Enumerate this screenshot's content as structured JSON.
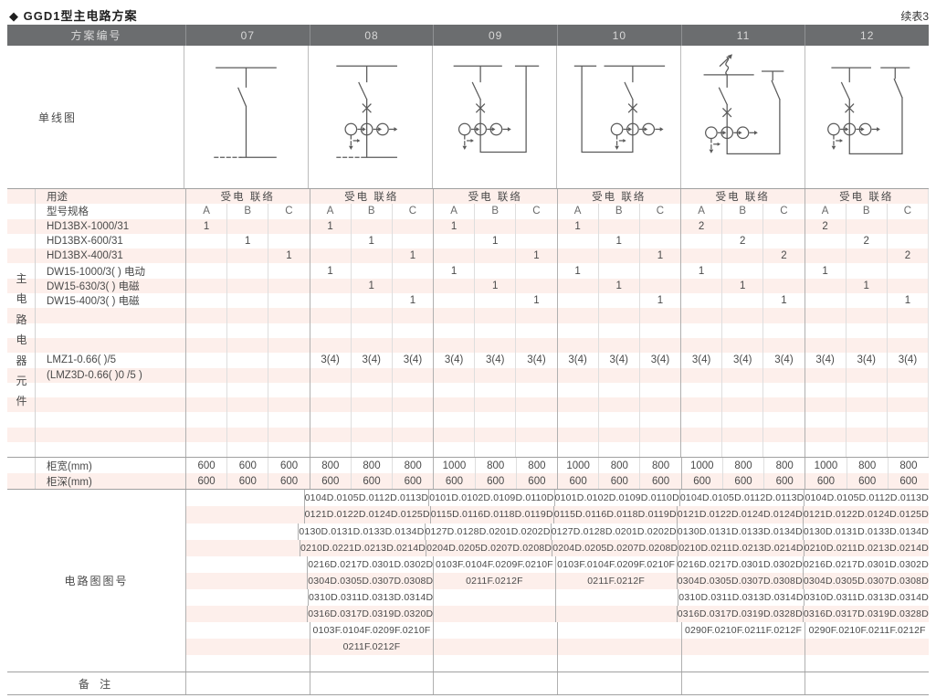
{
  "page": {
    "title": "◆ GGD1型主电路方案",
    "continuation": "续表3"
  },
  "table": {
    "header": {
      "label": "方案编号",
      "schemes": [
        "07",
        "08",
        "09",
        "10",
        "11",
        "12"
      ]
    },
    "diagram_label": "单线图",
    "side_label": "主\n电\n路\n电\n器\n元\n件",
    "specs": {
      "subcols": [
        "A",
        "B",
        "C"
      ],
      "rows": [
        {
          "label": "用途",
          "type": "span",
          "value": "受电 联络"
        },
        {
          "label": "型号规格",
          "type": "head"
        },
        {
          "label": "HD13BX-1000/31",
          "type": "abc",
          "values": [
            [
              "1",
              "",
              ""
            ],
            [
              "1",
              "",
              ""
            ],
            [
              "1",
              "",
              ""
            ],
            [
              "1",
              "",
              ""
            ],
            [
              "2",
              "",
              ""
            ],
            [
              "2",
              "",
              ""
            ]
          ]
        },
        {
          "label": "HD13BX-600/31",
          "type": "abc",
          "values": [
            [
              "",
              "1",
              ""
            ],
            [
              "",
              "1",
              ""
            ],
            [
              "",
              "1",
              ""
            ],
            [
              "",
              "1",
              ""
            ],
            [
              "",
              "2",
              ""
            ],
            [
              "",
              "2",
              ""
            ]
          ]
        },
        {
          "label": "HD13BX-400/31",
          "type": "abc",
          "values": [
            [
              "",
              "",
              "1"
            ],
            [
              "",
              "",
              "1"
            ],
            [
              "",
              "",
              "1"
            ],
            [
              "",
              "",
              "1"
            ],
            [
              "",
              "",
              "2"
            ],
            [
              "",
              "",
              "2"
            ]
          ]
        },
        {
          "label": "DW15-1000/3( )  电动",
          "type": "abc",
          "values": [
            [
              "",
              "",
              ""
            ],
            [
              "1",
              "",
              ""
            ],
            [
              "1",
              "",
              ""
            ],
            [
              "1",
              "",
              ""
            ],
            [
              "1",
              "",
              ""
            ],
            [
              "1",
              "",
              ""
            ]
          ]
        },
        {
          "label": "DW15-630/3( )  电磁",
          "type": "abc",
          "values": [
            [
              "",
              "",
              ""
            ],
            [
              "",
              "1",
              ""
            ],
            [
              "",
              "1",
              ""
            ],
            [
              "",
              "1",
              ""
            ],
            [
              "",
              "1",
              ""
            ],
            [
              "",
              "1",
              ""
            ]
          ]
        },
        {
          "label": "DW15-400/3( )  电磁",
          "type": "abc",
          "values": [
            [
              "",
              "",
              ""
            ],
            [
              "",
              "",
              "1"
            ],
            [
              "",
              "",
              "1"
            ],
            [
              "",
              "",
              "1"
            ],
            [
              "",
              "",
              "1"
            ],
            [
              "",
              "",
              "1"
            ]
          ]
        },
        {
          "label": "",
          "type": "empty"
        },
        {
          "label": "",
          "type": "empty"
        },
        {
          "label": "",
          "type": "empty"
        },
        {
          "label": "LMZ1-0.66(  )/5",
          "type": "abc",
          "values": [
            [
              "",
              "",
              ""
            ],
            [
              "3(4)",
              "3(4)",
              "3(4)"
            ],
            [
              "3(4)",
              "3(4)",
              "3(4)"
            ],
            [
              "3(4)",
              "3(4)",
              "3(4)"
            ],
            [
              "3(4)",
              "3(4)",
              "3(4)"
            ],
            [
              "3(4)",
              "3(4)",
              "3(4)"
            ]
          ]
        },
        {
          "label": "(LMZ3D-0.66(  )0 /5 )",
          "type": "empty"
        },
        {
          "label": "",
          "type": "empty"
        },
        {
          "label": "",
          "type": "empty"
        },
        {
          "label": "",
          "type": "empty"
        },
        {
          "label": "",
          "type": "empty"
        },
        {
          "label": "",
          "type": "empty"
        }
      ]
    },
    "dimensions": {
      "rows": [
        {
          "label": "柜宽(mm)",
          "type": "abc",
          "values": [
            [
              "600",
              "600",
              "600"
            ],
            [
              "800",
              "800",
              "800"
            ],
            [
              "1000",
              "800",
              "800"
            ],
            [
              "1000",
              "800",
              "800"
            ],
            [
              "1000",
              "800",
              "800"
            ],
            [
              "1000",
              "800",
              "800"
            ]
          ]
        },
        {
          "label": "柜深(mm)",
          "type": "abc",
          "values": [
            [
              "600",
              "600",
              "600"
            ],
            [
              "600",
              "600",
              "600"
            ],
            [
              "600",
              "600",
              "600"
            ],
            [
              "600",
              "600",
              "600"
            ],
            [
              "600",
              "600",
              "600"
            ],
            [
              "600",
              "600",
              "600"
            ]
          ]
        }
      ]
    },
    "drawing": {
      "label": "电路图图号",
      "row_count": 11,
      "columns": [
        [],
        [
          "0104D.0105D.0112D.0113D",
          "0121D.0122D.0124D.0125D",
          "0130D.0131D.0133D.0134D",
          "0210D.0221D.0213D.0214D",
          "0216D.0217D.0301D.0302D",
          "0304D.0305D.0307D.0308D",
          "0310D.0311D.0313D.0314D",
          "0316D.0317D.0319D.0320D",
          "0103F.0104F.0209F.0210F",
          "0211F.0212F"
        ],
        [
          "0101D.0102D.0109D.0110D",
          "0115D.0116D.0118D.0119D",
          "0127D.0128D.0201D.0202D",
          "0204D.0205D.0207D.0208D",
          "0103F.0104F.0209F.0210F",
          "0211F.0212F"
        ],
        [
          "0101D.0102D.0109D.0110D",
          "0115D.0116D.0118D.0119D",
          "0127D.0128D.0201D.0202D",
          "0204D.0205D.0207D.0208D",
          "0103F.0104F.0209F.0210F",
          "0211F.0212F"
        ],
        [
          "0104D.0105D.0112D.0113D",
          "0121D.0122D.0124D.0124D",
          "0130D.0131D.0133D.0134D",
          "0210D.0211D.0213D.0214D",
          "0216D.0217D.0301D.0302D",
          "0304D.0305D.0307D.0308D",
          "0310D.0311D.0313D.0314D",
          "0316D.0317D.0319D.0328D",
          "0290F.0210F.0211F.0212F"
        ],
        [
          "0104D.0105D.0112D.0113D",
          "0121D.0122D.0124D.0125D",
          "0130D.0131D.0133D.0134D",
          "0210D.0211D.0213D.0214D",
          "0216D.0217D.0301D.0302D",
          "0304D.0305D.0307D.0308D",
          "0310D.0311D.0313D.0314D",
          "0316D.0317D.0319D.0328D",
          "0290F.0210F.0211F.0212F"
        ]
      ]
    },
    "remarks": {
      "label": "备 注"
    },
    "colors": {
      "header_bg": "#6b6d6f",
      "stripe_pink": "#fdefeb",
      "rule_gray": "#a0a0a0"
    }
  }
}
